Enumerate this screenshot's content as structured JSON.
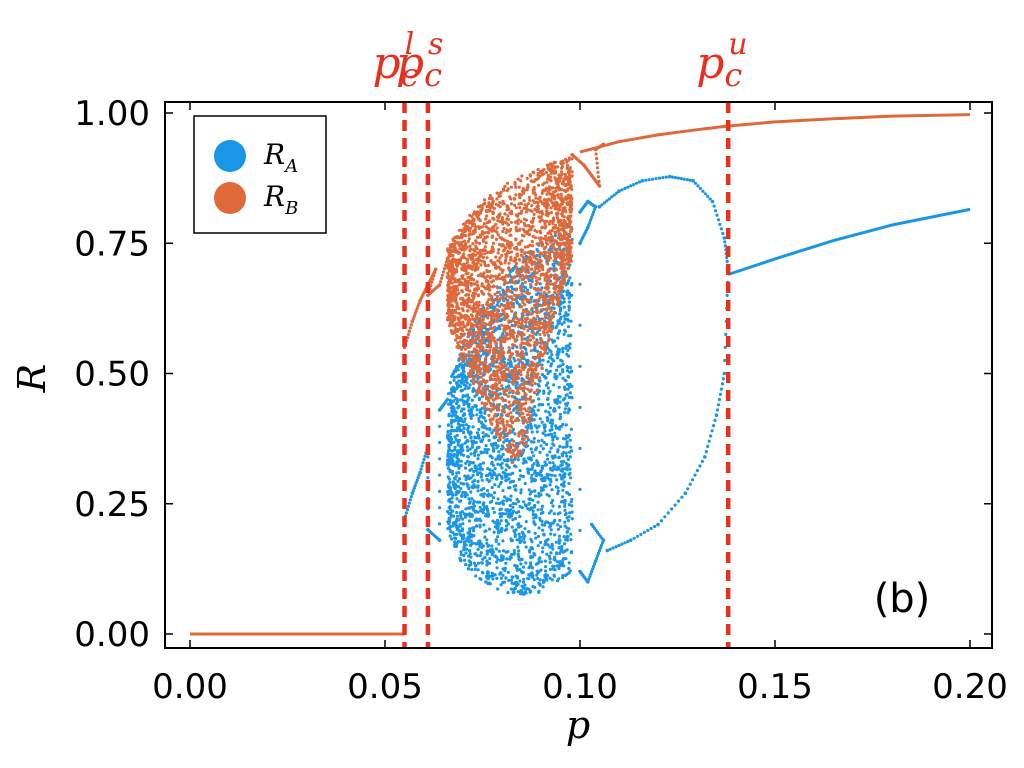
{
  "chart_data": {
    "type": "scatter",
    "title": "",
    "panel_label": "(b)",
    "xlabel": "p",
    "ylabel": "R",
    "xlim": [
      0.0,
      0.2
    ],
    "ylim": [
      0.0,
      1.0
    ],
    "x_ticks": [
      {
        "value": 0.0,
        "label": "0.00"
      },
      {
        "value": 0.05,
        "label": "0.05"
      },
      {
        "value": 0.1,
        "label": "0.10"
      },
      {
        "value": 0.15,
        "label": "0.15"
      },
      {
        "value": 0.2,
        "label": "0.20"
      }
    ],
    "y_ticks": [
      {
        "value": 0.0,
        "label": "0.00"
      },
      {
        "value": 0.25,
        "label": "0.25"
      },
      {
        "value": 0.5,
        "label": "0.50"
      },
      {
        "value": 0.75,
        "label": "0.75"
      },
      {
        "value": 1.0,
        "label": "1.00"
      }
    ],
    "grid": false,
    "legend_position": "top-left",
    "critical_lines": [
      {
        "name": "p_c^l",
        "base": "p",
        "subscript": "c",
        "superscript": "l",
        "x": 0.055,
        "color": "#e8301f"
      },
      {
        "name": "p_c^s",
        "base": "p",
        "subscript": "c",
        "superscript": "s",
        "x": 0.061,
        "color": "#e8301f"
      },
      {
        "name": "p_c^u",
        "base": "p",
        "subscript": "c",
        "superscript": "u",
        "x": 0.138,
        "color": "#e8301f"
      }
    ],
    "series": [
      {
        "name": "R_A",
        "legend_base": "R",
        "legend_sub": "A",
        "color": "#1a96e6",
        "segments": [
          {
            "kind": "line",
            "points": [
              [
                0.0,
                0.0
              ],
              [
                0.055,
                0.0
              ]
            ]
          },
          {
            "kind": "line",
            "points": [
              [
                0.138,
                0.69
              ],
              [
                0.15,
                0.72
              ],
              [
                0.165,
                0.755
              ],
              [
                0.18,
                0.785
              ],
              [
                0.2,
                0.815
              ]
            ]
          },
          {
            "kind": "dots",
            "points": [
              [
                0.055,
                0.22
              ],
              [
                0.057,
                0.27
              ],
              [
                0.059,
                0.31
              ],
              [
                0.061,
                0.36
              ],
              [
                0.061,
                0.2
              ],
              [
                0.064,
                0.18
              ],
              [
                0.064,
                0.43
              ],
              [
                0.066,
                0.45
              ]
            ]
          },
          {
            "kind": "dots",
            "points": [
              [
                0.105,
                0.82
              ],
              [
                0.11,
                0.85
              ],
              [
                0.116,
                0.87
              ],
              [
                0.123,
                0.878
              ],
              [
                0.129,
                0.87
              ],
              [
                0.134,
                0.83
              ],
              [
                0.137,
                0.76
              ],
              [
                0.138,
                0.7
              ],
              [
                0.137,
                0.5
              ],
              [
                0.135,
                0.42
              ],
              [
                0.132,
                0.34
              ],
              [
                0.127,
                0.27
              ],
              [
                0.12,
                0.21
              ],
              [
                0.113,
                0.18
              ],
              [
                0.107,
                0.16
              ]
            ]
          },
          {
            "kind": "dots",
            "points": [
              [
                0.1,
                0.81
              ],
              [
                0.102,
                0.83
              ],
              [
                0.104,
                0.82
              ],
              [
                0.102,
                0.78
              ],
              [
                0.1,
                0.75
              ],
              [
                0.1,
                0.12
              ],
              [
                0.102,
                0.1
              ],
              [
                0.104,
                0.14
              ],
              [
                0.106,
                0.18
              ],
              [
                0.103,
                0.21
              ]
            ]
          }
        ],
        "cloud": {
          "x_range": [
            0.066,
            0.098
          ],
          "upper": [
            [
              0.066,
              0.47
            ],
            [
              0.07,
              0.56
            ],
            [
              0.075,
              0.63
            ],
            [
              0.08,
              0.68
            ],
            [
              0.085,
              0.72
            ],
            [
              0.09,
              0.75
            ],
            [
              0.095,
              0.78
            ],
            [
              0.098,
              0.8
            ]
          ],
          "lower": [
            [
              0.066,
              0.2
            ],
            [
              0.07,
              0.13
            ],
            [
              0.075,
              0.1
            ],
            [
              0.08,
              0.08
            ],
            [
              0.085,
              0.075
            ],
            [
              0.09,
              0.08
            ],
            [
              0.095,
              0.1
            ],
            [
              0.098,
              0.12
            ]
          ]
        }
      },
      {
        "name": "R_B",
        "legend_base": "R",
        "legend_sub": "B",
        "color": "#e0693a",
        "segments": [
          {
            "kind": "line",
            "points": [
              [
                0.0,
                0.0
              ],
              [
                0.055,
                0.0
              ]
            ]
          },
          {
            "kind": "line",
            "points": [
              [
                0.1,
                0.925
              ],
              [
                0.11,
                0.945
              ],
              [
                0.12,
                0.958
              ],
              [
                0.13,
                0.968
              ],
              [
                0.138,
                0.975
              ],
              [
                0.15,
                0.983
              ],
              [
                0.165,
                0.989
              ],
              [
                0.18,
                0.994
              ],
              [
                0.2,
                0.997
              ]
            ]
          },
          {
            "kind": "dots",
            "points": [
              [
                0.055,
                0.55
              ],
              [
                0.057,
                0.6
              ],
              [
                0.059,
                0.64
              ],
              [
                0.061,
                0.67
              ],
              [
                0.063,
                0.7
              ],
              [
                0.061,
                0.65
              ],
              [
                0.064,
                0.67
              ],
              [
                0.066,
                0.72
              ]
            ]
          },
          {
            "kind": "dots",
            "points": [
              [
                0.098,
                0.92
              ],
              [
                0.101,
                0.9
              ],
              [
                0.103,
                0.88
              ],
              [
                0.105,
                0.86
              ],
              [
                0.104,
                0.93
              ],
              [
                0.106,
                0.94
              ]
            ]
          }
        ],
        "cloud": {
          "x_range": [
            0.066,
            0.098
          ],
          "upper": [
            [
              0.066,
              0.74
            ],
            [
              0.07,
              0.79
            ],
            [
              0.075,
              0.83
            ],
            [
              0.08,
              0.86
            ],
            [
              0.085,
              0.88
            ],
            [
              0.09,
              0.9
            ],
            [
              0.095,
              0.91
            ],
            [
              0.098,
              0.915
            ]
          ],
          "lower": [
            [
              0.066,
              0.6
            ],
            [
              0.07,
              0.52
            ],
            [
              0.075,
              0.44
            ],
            [
              0.08,
              0.36
            ],
            [
              0.083,
              0.32
            ],
            [
              0.086,
              0.36
            ],
            [
              0.09,
              0.5
            ],
            [
              0.095,
              0.65
            ],
            [
              0.098,
              0.72
            ]
          ]
        }
      }
    ]
  }
}
